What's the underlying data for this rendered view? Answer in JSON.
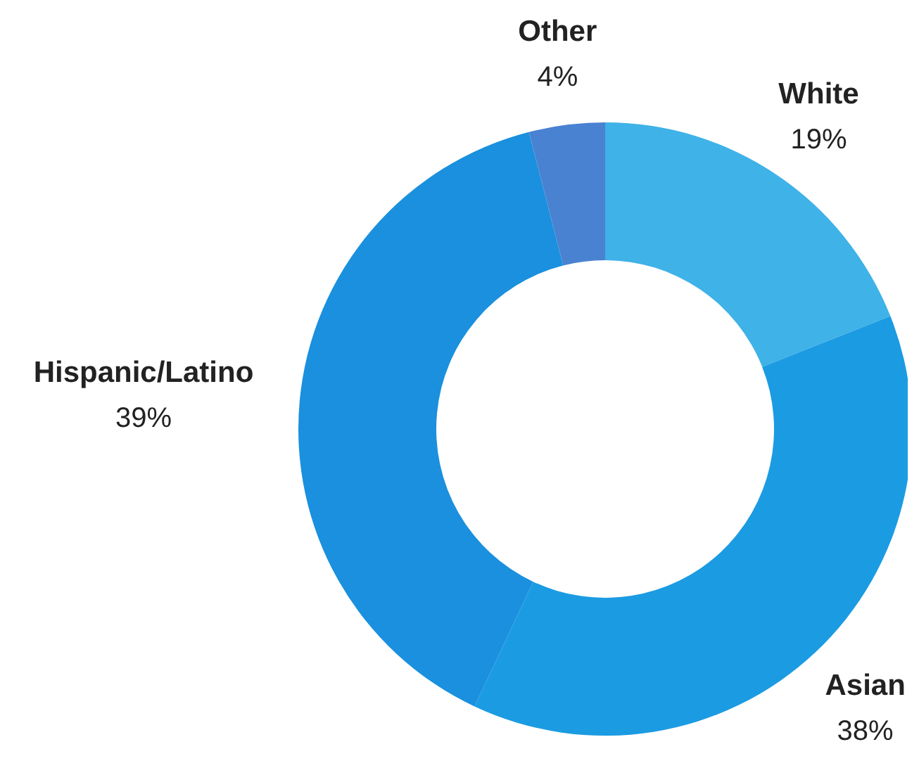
{
  "chart_data": {
    "type": "donut",
    "categories": [
      "White",
      "Asian",
      "Hispanic/Latino",
      "Other"
    ],
    "values": [
      19,
      38,
      39,
      4
    ],
    "colors": [
      "#3fb2e8",
      "#1b9be2",
      "#1a90de",
      "#4a82d2"
    ],
    "value_labels": [
      "19%",
      "38%",
      "39%",
      "4%"
    ],
    "legend": false
  }
}
